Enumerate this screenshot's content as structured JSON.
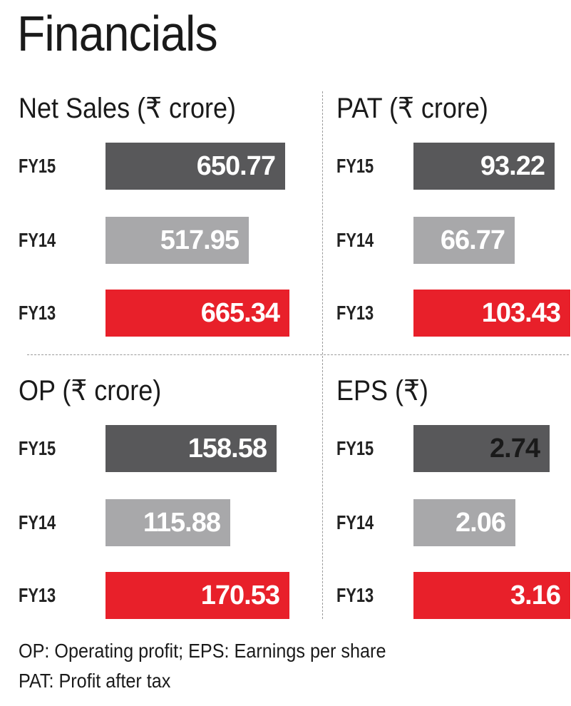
{
  "title": "Financials",
  "footnotes": [
    "OP: Operating profit; EPS: Earnings per share",
    "PAT: Profit after tax"
  ],
  "colors": {
    "FY15": "#58585a",
    "FY14": "#a8a8aa",
    "FY13": "#e8202a",
    "eps_fy15_text": "#1a1a1a"
  },
  "chart_data": [
    {
      "type": "bar",
      "title": "Net Sales (₹ crore)",
      "categories": [
        "FY15",
        "FY14",
        "FY13"
      ],
      "values": [
        650.77,
        517.95,
        665.34
      ],
      "labels": [
        "650.77",
        "517.95",
        "665.34"
      ]
    },
    {
      "type": "bar",
      "title": "PAT (₹ crore)",
      "categories": [
        "FY15",
        "FY14",
        "FY13"
      ],
      "values": [
        93.22,
        66.77,
        103.43
      ],
      "labels": [
        "93.22",
        "66.77",
        "103.43"
      ]
    },
    {
      "type": "bar",
      "title": "OP (₹ crore)",
      "categories": [
        "FY15",
        "FY14",
        "FY13"
      ],
      "values": [
        158.58,
        115.88,
        170.53
      ],
      "labels": [
        "158.58",
        "115.88",
        "170.53"
      ]
    },
    {
      "type": "bar",
      "title": "EPS (₹)",
      "categories": [
        "FY15",
        "FY14",
        "FY13"
      ],
      "values": [
        2.74,
        2.06,
        3.16
      ],
      "labels": [
        "2.74",
        "2.06",
        "3.16"
      ]
    }
  ]
}
